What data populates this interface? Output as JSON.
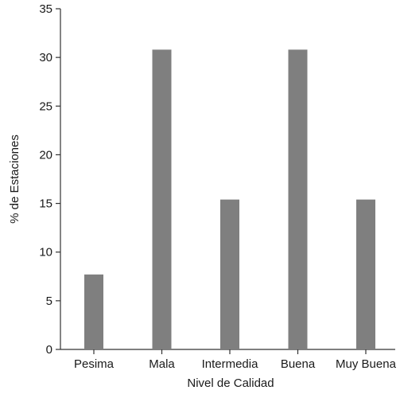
{
  "chart_data": {
    "type": "bar",
    "title": "",
    "xlabel": "Nivel de Calidad",
    "ylabel": "% de Estaciones",
    "categories": [
      "Pesima",
      "Mala",
      "Intermedia",
      "Buena",
      "Muy Buena"
    ],
    "values": [
      7.7,
      30.8,
      15.4,
      30.8,
      15.4
    ],
    "ylim": [
      0,
      35
    ],
    "yticks": [
      0,
      5,
      10,
      15,
      20,
      25,
      30,
      35
    ],
    "grid": false,
    "colors": {
      "bar": "#7f7f7f",
      "axis": "#333333"
    }
  }
}
